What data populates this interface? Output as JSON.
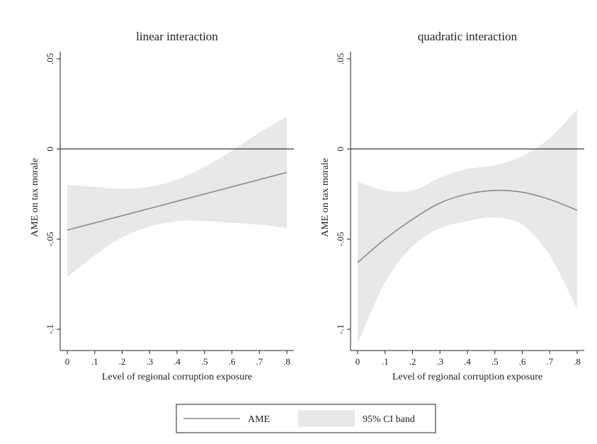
{
  "chart_data": [
    {
      "type": "line",
      "title": "linear interaction",
      "xlabel": "Level of regional corruption exposure",
      "ylabel": "AME on tax morale",
      "xlim": [
        0,
        0.8
      ],
      "ylim": [
        -0.1,
        0.05
      ],
      "xticks": [
        0,
        0.1,
        0.2,
        0.3,
        0.4,
        0.5,
        0.6,
        0.7,
        0.8
      ],
      "xtick_labels": [
        "0",
        ".1",
        ".2",
        ".3",
        ".4",
        ".5",
        ".6",
        ".7",
        ".8"
      ],
      "yticks": [
        -0.1,
        -0.05,
        0,
        0.05
      ],
      "ytick_labels": [
        "-.1",
        "-.05",
        "0",
        ".05"
      ],
      "reference_line_y": 0,
      "grid": false,
      "x": [
        0,
        0.1,
        0.2,
        0.3,
        0.4,
        0.5,
        0.6,
        0.7,
        0.8
      ],
      "series": [
        {
          "name": "AME",
          "values": [
            -0.045,
            -0.041,
            -0.037,
            -0.033,
            -0.029,
            -0.025,
            -0.021,
            -0.017,
            -0.013
          ]
        },
        {
          "name": "95% CI band",
          "lower": [
            -0.071,
            -0.059,
            -0.049,
            -0.043,
            -0.04,
            -0.04,
            -0.041,
            -0.042,
            -0.044
          ],
          "upper": [
            -0.02,
            -0.021,
            -0.022,
            -0.021,
            -0.017,
            -0.01,
            -0.001,
            0.009,
            0.018
          ]
        }
      ]
    },
    {
      "type": "line",
      "title": "quadratic interaction",
      "xlabel": "Level of regional corruption exposure",
      "ylabel": "AME on tax morale",
      "xlim": [
        0,
        0.8
      ],
      "ylim": [
        -0.1,
        0.05
      ],
      "xticks": [
        0,
        0.1,
        0.2,
        0.3,
        0.4,
        0.5,
        0.6,
        0.7,
        0.8
      ],
      "xtick_labels": [
        "0",
        ".1",
        ".2",
        ".3",
        ".4",
        ".5",
        ".6",
        ".7",
        ".8"
      ],
      "yticks": [
        -0.1,
        -0.05,
        0,
        0.05
      ],
      "ytick_labels": [
        "-.1",
        "-.05",
        "0",
        ".05"
      ],
      "reference_line_y": 0,
      "grid": false,
      "x": [
        0,
        0.1,
        0.2,
        0.3,
        0.4,
        0.5,
        0.6,
        0.7,
        0.8
      ],
      "series": [
        {
          "name": "AME",
          "values": [
            -0.063,
            -0.05,
            -0.039,
            -0.03,
            -0.025,
            -0.023,
            -0.024,
            -0.028,
            -0.034
          ]
        },
        {
          "name": "95% CI band",
          "lower": [
            -0.108,
            -0.074,
            -0.054,
            -0.044,
            -0.04,
            -0.038,
            -0.042,
            -0.059,
            -0.089
          ],
          "upper": [
            -0.018,
            -0.023,
            -0.023,
            -0.016,
            -0.011,
            -0.009,
            -0.004,
            0.006,
            0.022
          ]
        }
      ]
    }
  ],
  "legend": {
    "position": "bottom",
    "items": [
      {
        "label": "AME",
        "kind": "line",
        "color": "#8c8c8c"
      },
      {
        "label": "95% CI band",
        "kind": "area",
        "color": "#e8e8e8"
      }
    ]
  },
  "colors": {
    "line": "#8c8c8c",
    "band": "#e8e8e8",
    "axis": "#222222",
    "reference": "#222222"
  }
}
